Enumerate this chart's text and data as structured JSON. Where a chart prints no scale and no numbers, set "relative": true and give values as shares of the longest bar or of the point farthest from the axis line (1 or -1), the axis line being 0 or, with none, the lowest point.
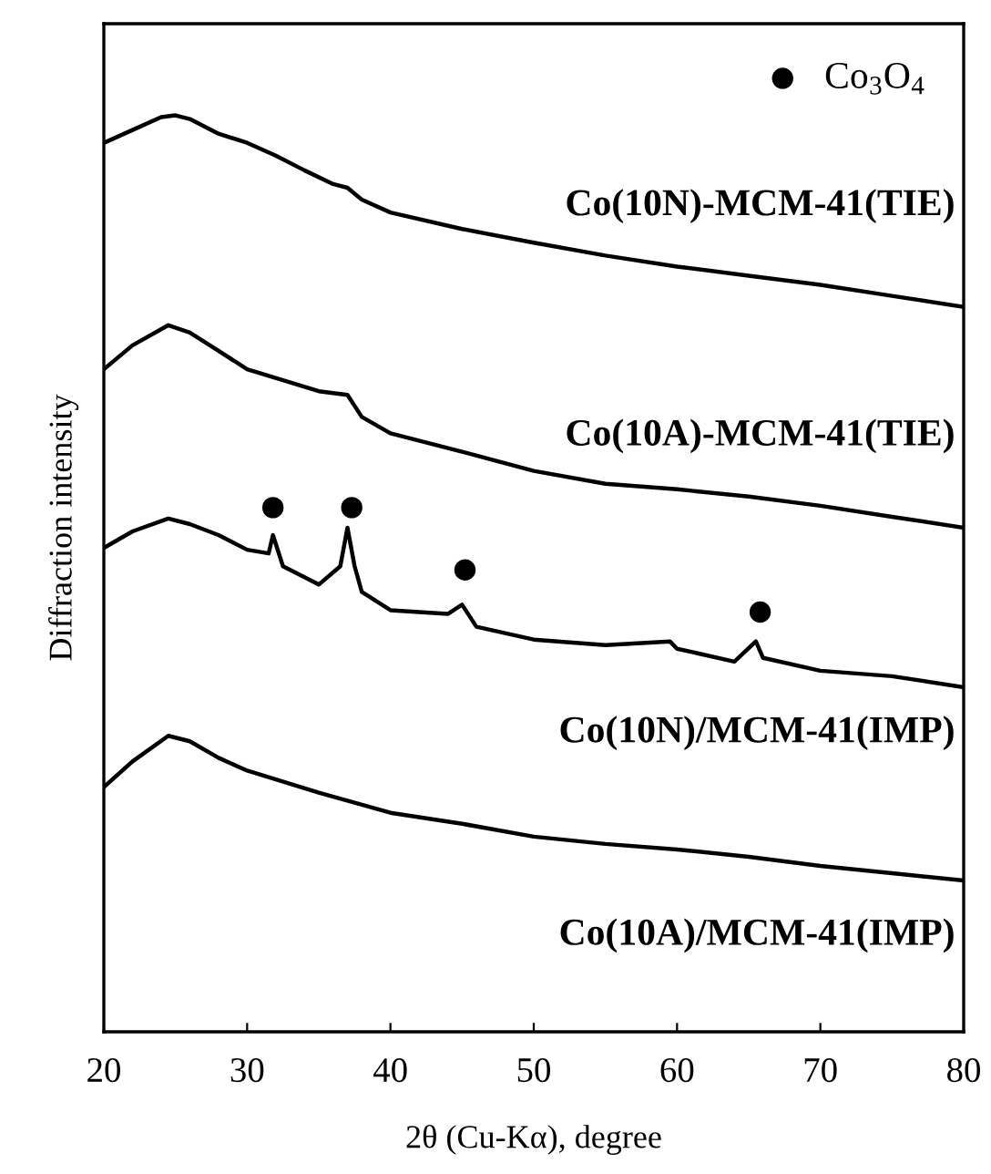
{
  "chart_data": {
    "type": "line",
    "relative": true,
    "xlabel": "2θ (Cu-Kα), degree",
    "ylabel": "Diffraction intensity",
    "xlim": [
      20,
      80
    ],
    "xticks": [
      20,
      30,
      40,
      50,
      60,
      70,
      80
    ],
    "legend": "top right",
    "grid": false,
    "tick_labels": "x",
    "series": [
      {
        "name": "Co(10N)-MCM-41(TIE)",
        "color": "#000000",
        "x": [
          20,
          22,
          24,
          25,
          26,
          28,
          30,
          32,
          34,
          36,
          37,
          38,
          40,
          45,
          50,
          55,
          60,
          65,
          70,
          75,
          80
        ],
        "values": [
          0.97,
          0.984,
          0.998,
          1.0,
          0.996,
          0.98,
          0.97,
          0.956,
          0.94,
          0.925,
          0.921,
          0.908,
          0.894,
          0.876,
          0.861,
          0.847,
          0.835,
          0.825,
          0.815,
          0.803,
          0.791
        ]
      },
      {
        "name": "Co(10A)-MCM-41(TIE)",
        "color": "#000000",
        "x": [
          20,
          22,
          24.5,
          26,
          28,
          30,
          35,
          37,
          38,
          40,
          45,
          50,
          55,
          60,
          65,
          70,
          75,
          80
        ],
        "values": [
          0.723,
          0.749,
          0.771,
          0.763,
          0.743,
          0.723,
          0.699,
          0.695,
          0.671,
          0.653,
          0.633,
          0.612,
          0.598,
          0.592,
          0.584,
          0.574,
          0.562,
          0.55
        ]
      },
      {
        "name": "Co(10N)/MCM-41(IMP)",
        "color": "#000000",
        "x": [
          20,
          22,
          24.5,
          26,
          28,
          30,
          31.5,
          31.8,
          32.5,
          35,
          36.5,
          37,
          37.5,
          38,
          40,
          44,
          45,
          46,
          50,
          55,
          59.5,
          60,
          64,
          65.5,
          66,
          70,
          75,
          80
        ],
        "values": [
          0.528,
          0.546,
          0.56,
          0.554,
          0.542,
          0.526,
          0.522,
          0.542,
          0.508,
          0.488,
          0.508,
          0.55,
          0.508,
          0.48,
          0.46,
          0.456,
          0.466,
          0.442,
          0.428,
          0.422,
          0.426,
          0.418,
          0.404,
          0.426,
          0.408,
          0.394,
          0.388,
          0.376
        ]
      },
      {
        "name": "Co(10A)/MCM-41(IMP)",
        "color": "#000000",
        "x": [
          20,
          22,
          24.5,
          26,
          28,
          30,
          35,
          40,
          45,
          50,
          55,
          60,
          65,
          70,
          75,
          80
        ],
        "values": [
          0.267,
          0.295,
          0.323,
          0.317,
          0.299,
          0.285,
          0.261,
          0.239,
          0.227,
          0.213,
          0.205,
          0.199,
          0.191,
          0.181,
          0.173,
          0.165
        ]
      },
      {
        "name": "Co$_{3}$O$_{4}$",
        "type": "scatter",
        "marker": "circle",
        "color": "#000000",
        "x": [
          31.8,
          37.3,
          45.2,
          65.8
        ],
        "values": [
          0.572,
          0.572,
          0.504,
          0.458
        ]
      }
    ]
  }
}
